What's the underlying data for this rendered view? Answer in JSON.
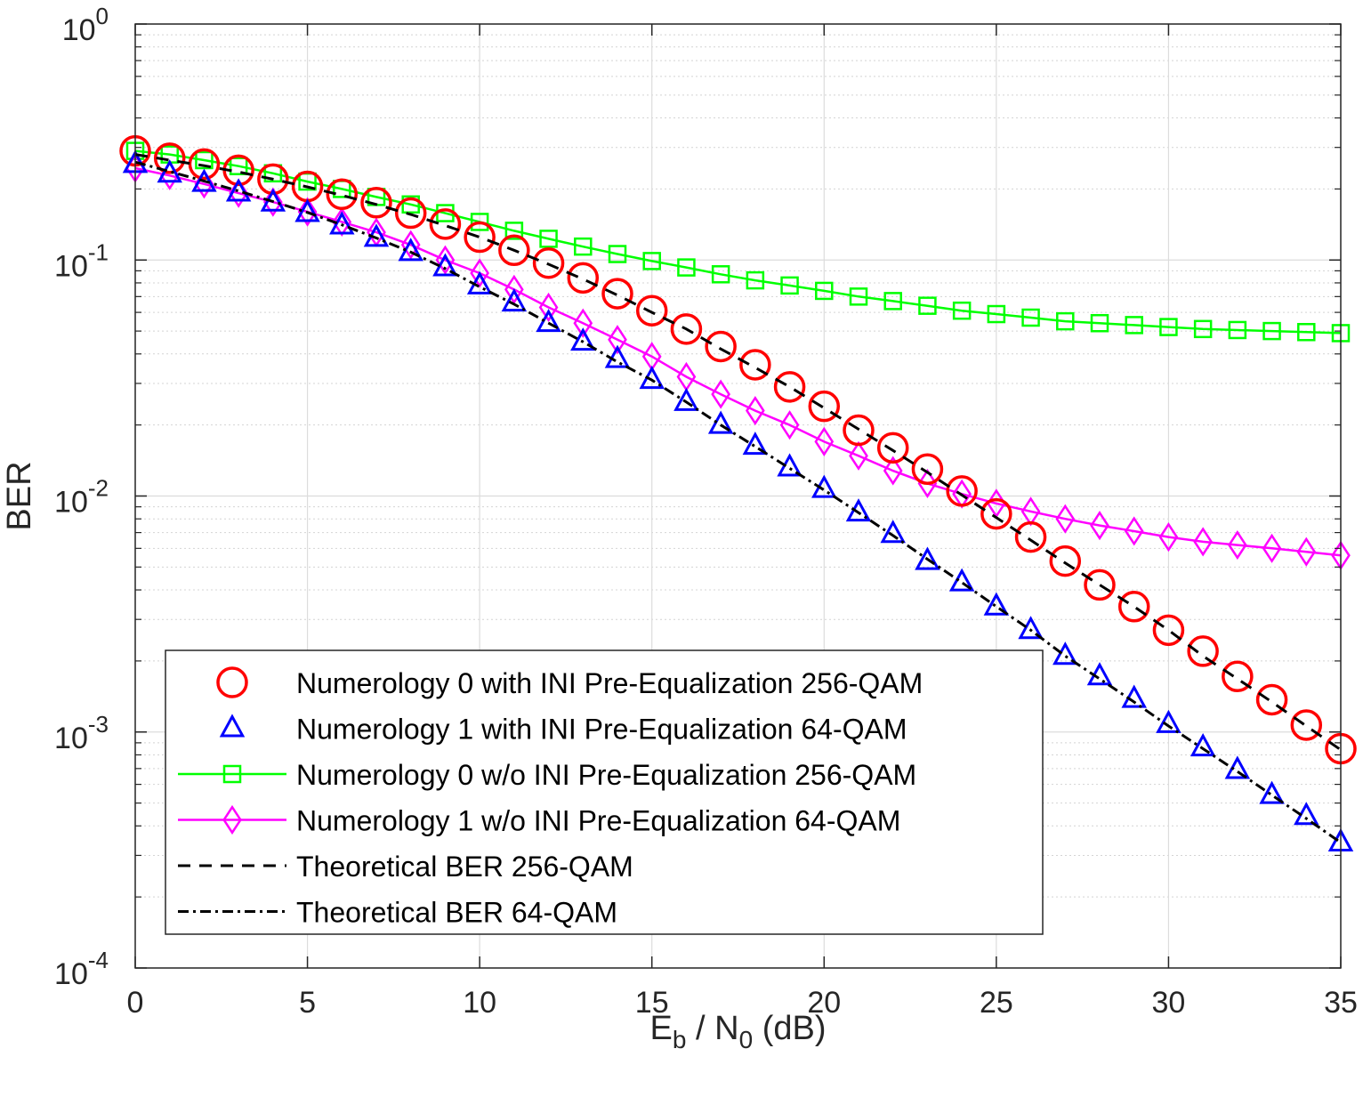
{
  "chart_data": {
    "type": "line",
    "title": "",
    "xlabel": {
      "main": "E",
      "sub1": "b",
      "mid": " / N",
      "sub2": "0",
      "tail": " (dB)"
    },
    "ylabel": "BER",
    "xlim": [
      0,
      35
    ],
    "ylim": [
      0.0001,
      1
    ],
    "yscale": "log",
    "grid": true,
    "legend_position": "bottom-left",
    "x_ticks": [
      0,
      5,
      10,
      15,
      20,
      25,
      30,
      35
    ],
    "x_tick_labels": [
      "0",
      "5",
      "10",
      "15",
      "20",
      "25",
      "30",
      "35"
    ],
    "y_ticks": [
      {
        "value": 1,
        "base": "10",
        "exp": "0"
      },
      {
        "value": 0.1,
        "base": "10",
        "exp": "-1"
      },
      {
        "value": 0.01,
        "base": "10",
        "exp": "-2"
      },
      {
        "value": 0.001,
        "base": "10",
        "exp": "-3"
      },
      {
        "value": 0.0001,
        "base": "10",
        "exp": "-4"
      }
    ],
    "x": [
      0,
      1,
      2,
      3,
      4,
      5,
      6,
      7,
      8,
      9,
      10,
      11,
      12,
      13,
      14,
      15,
      16,
      17,
      18,
      19,
      20,
      21,
      22,
      23,
      24,
      25,
      26,
      27,
      28,
      29,
      30,
      31,
      32,
      33,
      34,
      35
    ],
    "series": [
      {
        "name": "Numerology 0 with INI Pre-Equalization 256-QAM",
        "color": "#ff0000",
        "marker": "circle",
        "line": "none",
        "values": [
          0.29,
          0.27,
          0.255,
          0.24,
          0.22,
          0.205,
          0.19,
          0.175,
          0.158,
          0.142,
          0.125,
          0.11,
          0.097,
          0.084,
          0.072,
          0.061,
          0.051,
          0.043,
          0.036,
          0.029,
          0.024,
          0.019,
          0.016,
          0.013,
          0.0105,
          0.0084,
          0.0067,
          0.0053,
          0.0042,
          0.0034,
          0.0027,
          0.0022,
          0.00172,
          0.00137,
          0.00107,
          0.00085
        ]
      },
      {
        "name": "Numerology 1 with INI Pre-Equalization 64-QAM",
        "color": "#0000ff",
        "marker": "triangle",
        "line": "none",
        "values": [
          0.255,
          0.232,
          0.212,
          0.193,
          0.175,
          0.158,
          0.14,
          0.124,
          0.108,
          0.093,
          0.078,
          0.066,
          0.054,
          0.045,
          0.038,
          0.031,
          0.025,
          0.02,
          0.0163,
          0.0132,
          0.0107,
          0.0085,
          0.0069,
          0.0053,
          0.0043,
          0.0034,
          0.0027,
          0.0021,
          0.00172,
          0.00138,
          0.00108,
          0.00086,
          0.00069,
          0.00054,
          0.00044,
          0.00034
        ]
      },
      {
        "name": "Numerology 0 w/o INI Pre-Equalization 256-QAM",
        "color": "#00ff00",
        "marker": "square",
        "line": "solid",
        "values": [
          0.29,
          0.28,
          0.265,
          0.25,
          0.233,
          0.215,
          0.2,
          0.185,
          0.172,
          0.158,
          0.145,
          0.133,
          0.123,
          0.114,
          0.106,
          0.099,
          0.093,
          0.087,
          0.082,
          0.078,
          0.074,
          0.07,
          0.067,
          0.064,
          0.061,
          0.059,
          0.057,
          0.055,
          0.054,
          0.053,
          0.052,
          0.051,
          0.0505,
          0.05,
          0.0495,
          0.049
        ]
      },
      {
        "name": "Numerology 1 w/o INI Pre-Equalization 64-QAM",
        "color": "#ff00ff",
        "marker": "diamond",
        "line": "solid",
        "values": [
          0.245,
          0.228,
          0.21,
          0.192,
          0.176,
          0.16,
          0.145,
          0.131,
          0.116,
          0.1,
          0.088,
          0.075,
          0.063,
          0.054,
          0.046,
          0.039,
          0.032,
          0.027,
          0.023,
          0.02,
          0.017,
          0.0148,
          0.0128,
          0.0113,
          0.0102,
          0.0093,
          0.0086,
          0.008,
          0.0075,
          0.0071,
          0.0067,
          0.0064,
          0.0062,
          0.006,
          0.0058,
          0.0056
        ]
      },
      {
        "name": "Theoretical BER 256-QAM",
        "color": "#000000",
        "marker": "none",
        "line": "dashed",
        "values": [
          0.28,
          0.265,
          0.251,
          0.236,
          0.22,
          0.204,
          0.188,
          0.172,
          0.156,
          0.14,
          0.125,
          0.11,
          0.096,
          0.083,
          0.071,
          0.06,
          0.051,
          0.042,
          0.035,
          0.029,
          0.0236,
          0.0192,
          0.0156,
          0.0126,
          0.0101,
          0.0081,
          0.0065,
          0.0052,
          0.0042,
          0.0034,
          0.0027,
          0.0021,
          0.00168,
          0.00134,
          0.00106,
          0.00084
        ]
      },
      {
        "name": "Theoretical BER 64-QAM",
        "color": "#000000",
        "marker": "none",
        "line": "dashdot",
        "values": [
          0.26,
          0.237,
          0.216,
          0.196,
          0.177,
          0.159,
          0.141,
          0.124,
          0.108,
          0.092,
          0.077,
          0.065,
          0.054,
          0.045,
          0.037,
          0.031,
          0.025,
          0.02,
          0.0162,
          0.0131,
          0.0106,
          0.0085,
          0.0068,
          0.0054,
          0.0043,
          0.0034,
          0.0027,
          0.0021,
          0.00168,
          0.00134,
          0.00106,
          0.00085,
          0.00068,
          0.00054,
          0.00043,
          0.00034
        ]
      }
    ]
  }
}
